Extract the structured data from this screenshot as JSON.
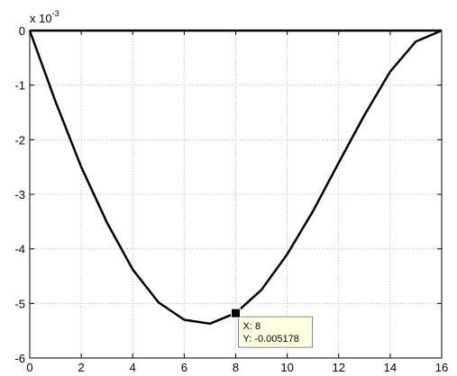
{
  "chart_data": {
    "type": "line",
    "title": "",
    "xlabel": "",
    "ylabel": "",
    "y_exponent_label": {
      "base": "x 10",
      "exponent": "-3"
    },
    "xlim": [
      0,
      16
    ],
    "ylim": [
      -6,
      0
    ],
    "grid": true,
    "x_ticks": [
      "0",
      "2",
      "4",
      "6",
      "8",
      "10",
      "12",
      "14",
      "16"
    ],
    "y_ticks": [
      "0",
      "-1",
      "-2",
      "-3",
      "-4",
      "-5",
      "-6"
    ],
    "series": [
      {
        "x": [
          0,
          1,
          2,
          3,
          4,
          5,
          6,
          7,
          8,
          9,
          10,
          11,
          12,
          13,
          14,
          15,
          16
        ],
        "y": [
          0,
          -1.3,
          -2.5,
          -3.52,
          -4.38,
          -4.98,
          -5.3,
          -5.37,
          -5.178,
          -4.75,
          -4.1,
          -3.31,
          -2.42,
          -1.55,
          -0.75,
          -0.2,
          0
        ],
        "color": "#000000"
      }
    ],
    "baseline": {
      "y": 0,
      "color": "#000000"
    },
    "datatip": {
      "x_value": 8,
      "y_value": -5.178,
      "line1": "X: 8",
      "line2": "Y: -0.005178"
    }
  }
}
